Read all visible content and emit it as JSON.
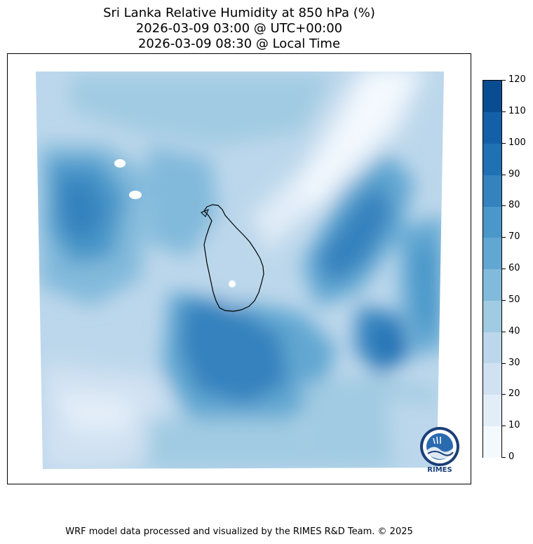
{
  "title": {
    "line1": "Sri Lanka Relative Humidity at 850 hPa (%)",
    "line2": "2026-03-09 03:00 @ UTC+00:00",
    "line3": "2026-03-09 08:30 @ Local Time"
  },
  "colorbar": {
    "ticks": [
      "0",
      "10",
      "20",
      "30",
      "40",
      "50",
      "60",
      "70",
      "80",
      "90",
      "100",
      "110",
      "120"
    ],
    "colors": [
      "#f4f9fe",
      "#e2edf8",
      "#d0e1f2",
      "#bcd7eb",
      "#a0cbe2",
      "#82badb",
      "#62a7d2",
      "#4a97c9",
      "#3482be",
      "#2070b4",
      "#1460a8",
      "#0a4c92"
    ]
  },
  "logo": {
    "text": "RIMES"
  },
  "footer": "WRF model data processed and visualized by the RIMES R&D Team. © 2025"
}
